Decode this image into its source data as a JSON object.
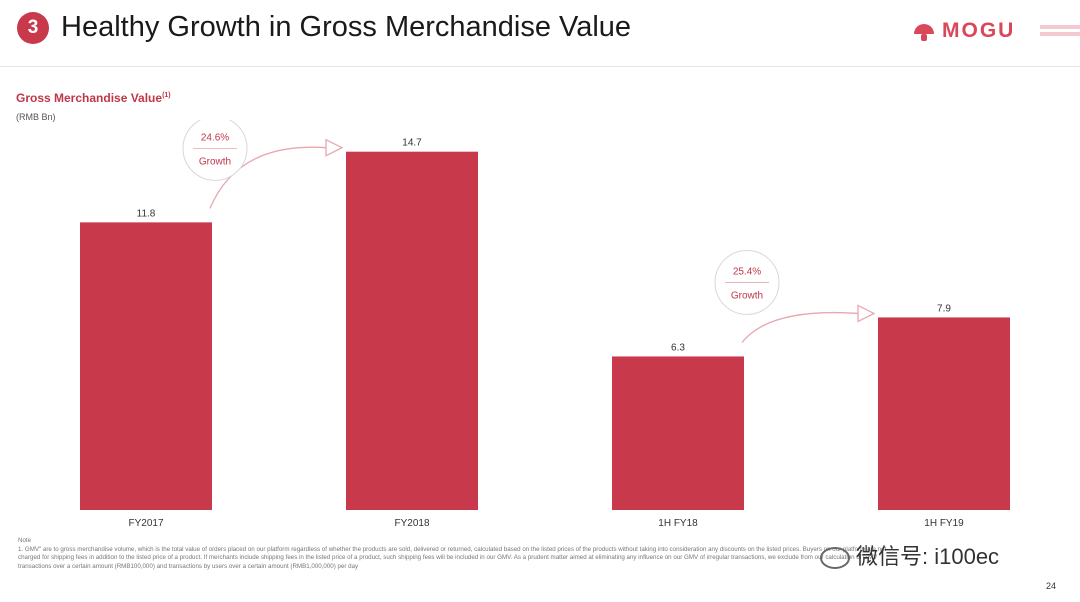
{
  "header": {
    "badge": "3",
    "title": "Healthy Growth in Gross Merchandise Value",
    "logo_text": "MOGU"
  },
  "subtitle": "Gross Merchandise Value",
  "subtitle_mark": "(1)",
  "unit": "(RMB Bn)",
  "colors": {
    "accent": "#c8394b",
    "bar": "#c8394b"
  },
  "chart_data": {
    "type": "bar",
    "categories": [
      "FY2017",
      "FY2018",
      "1H FY18",
      "1H FY19"
    ],
    "values": [
      11.8,
      14.7,
      6.3,
      7.9
    ],
    "value_labels": [
      "11.8",
      "14.7",
      "6.3",
      "7.9"
    ],
    "ylabel": "(RMB Bn)",
    "ylim": [
      0,
      16
    ],
    "grid": false,
    "annotations": [
      {
        "from": "FY2017",
        "to": "FY2018",
        "value": "24.6%",
        "label": "Growth"
      },
      {
        "from": "1H FY18",
        "to": "1H FY19",
        "value": "25.4%",
        "label": "Growth"
      }
    ]
  },
  "notes": {
    "heading": "Note",
    "text": "1. GMV\" are to gross merchandise volume, which is the total value of orders placed on our platform regardless of whether the products are sold, delivered or returned, calculated based on the listed prices of the products without taking into consideration any discounts on the listed prices. Buyers on our platform are not charged for shipping fees in addition to the listed price of a product. If merchants include shipping fees in the listed price of a product, such shipping fees will be included in our GMV. As a prudent matter aimed at eliminating any influence on our GMV of irregular transactions, we exclude from our calculation of GMV transactions over a certain amount (RMB100,000) and transactions by users over a certain amount (RMB1,000,000) per day"
  },
  "watermark": "微信号: i100ec",
  "page_number": "24"
}
